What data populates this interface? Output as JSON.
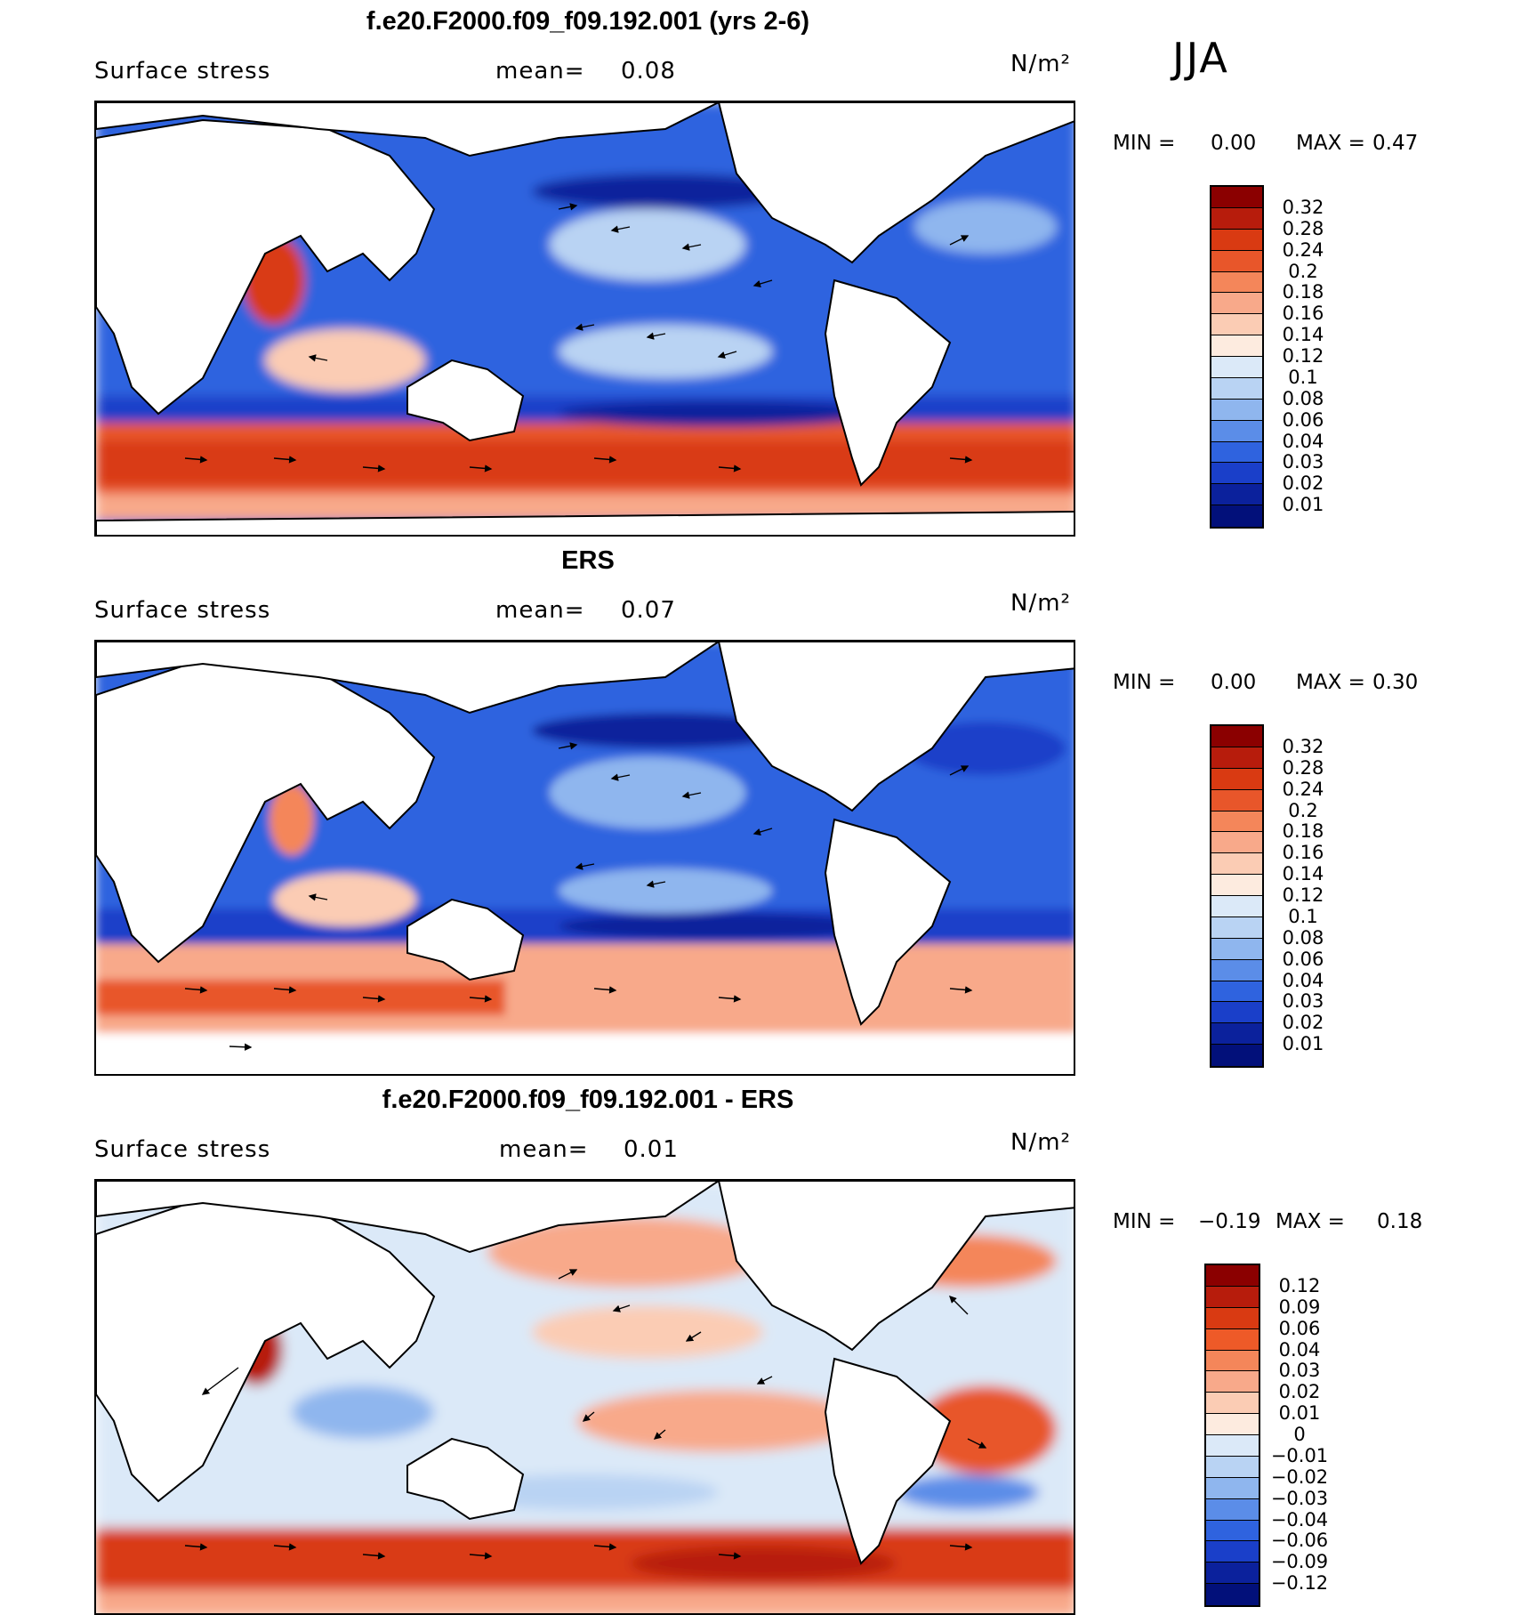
{
  "season": "JJA",
  "panels": [
    {
      "title": "f.e20.F2000.f09_f09.192.001 (yrs 2-6)",
      "variable": "Surface stress",
      "mean_label": "mean=",
      "mean_value": "0.08",
      "units": "N/m²",
      "min_label": "MIN =",
      "min_value": "0.00",
      "max_label": "MAX =",
      "max_value": "0.47",
      "colorbar": {
        "levels": [
          "0.32",
          "0.28",
          "0.24",
          "0.2",
          "0.18",
          "0.16",
          "0.14",
          "0.12",
          "0.1",
          "0.08",
          "0.06",
          "0.04",
          "0.03",
          "0.02",
          "0.01"
        ],
        "colors": [
          "#8b0000",
          "#b71c0c",
          "#d93a12",
          "#e8562a",
          "#f4865a",
          "#f8a98a",
          "#fbccb4",
          "#fdebdf",
          "#dbe9f8",
          "#b9d3f3",
          "#8fb6ee",
          "#5b8de8",
          "#2f63df",
          "#1a3fc9",
          "#0b219c",
          "#02107a"
        ]
      }
    },
    {
      "title": "ERS",
      "variable": "Surface stress",
      "mean_label": "mean=",
      "mean_value": "0.07",
      "units": "N/m²",
      "min_label": "MIN =",
      "min_value": "0.00",
      "max_label": "MAX =",
      "max_value": "0.30",
      "colorbar": {
        "levels": [
          "0.32",
          "0.28",
          "0.24",
          "0.2",
          "0.18",
          "0.16",
          "0.14",
          "0.12",
          "0.1",
          "0.08",
          "0.06",
          "0.04",
          "0.03",
          "0.02",
          "0.01"
        ],
        "colors": [
          "#8b0000",
          "#b71c0c",
          "#d93a12",
          "#e8562a",
          "#f4865a",
          "#f8a98a",
          "#fbccb4",
          "#fdebdf",
          "#dbe9f8",
          "#b9d3f3",
          "#8fb6ee",
          "#5b8de8",
          "#2f63df",
          "#1a3fc9",
          "#0b219c",
          "#02107a"
        ]
      }
    },
    {
      "title": "f.e20.F2000.f09_f09.192.001 - ERS",
      "variable": "Surface stress",
      "mean_label": "mean=",
      "mean_value": "0.01",
      "units": "N/m²",
      "min_label": "MIN =",
      "min_value": "−0.19",
      "max_label": "MAX =",
      "max_value": "0.18",
      "colorbar": {
        "levels": [
          "0.12",
          "0.09",
          "0.06",
          "0.04",
          "0.03",
          "0.02",
          "0.01",
          "0",
          "−0.01",
          "−0.02",
          "−0.03",
          "−0.04",
          "−0.06",
          "−0.09",
          "−0.12"
        ],
        "colors": [
          "#8b0000",
          "#b71c0c",
          "#d93a12",
          "#ee5a28",
          "#f4865a",
          "#f8a98a",
          "#fbccb4",
          "#fdebdf",
          "#dbe9f8",
          "#b9d3f3",
          "#8fb6ee",
          "#5b8de8",
          "#2f63df",
          "#1a3fc9",
          "#0b219c",
          "#02107a"
        ]
      }
    }
  ]
}
